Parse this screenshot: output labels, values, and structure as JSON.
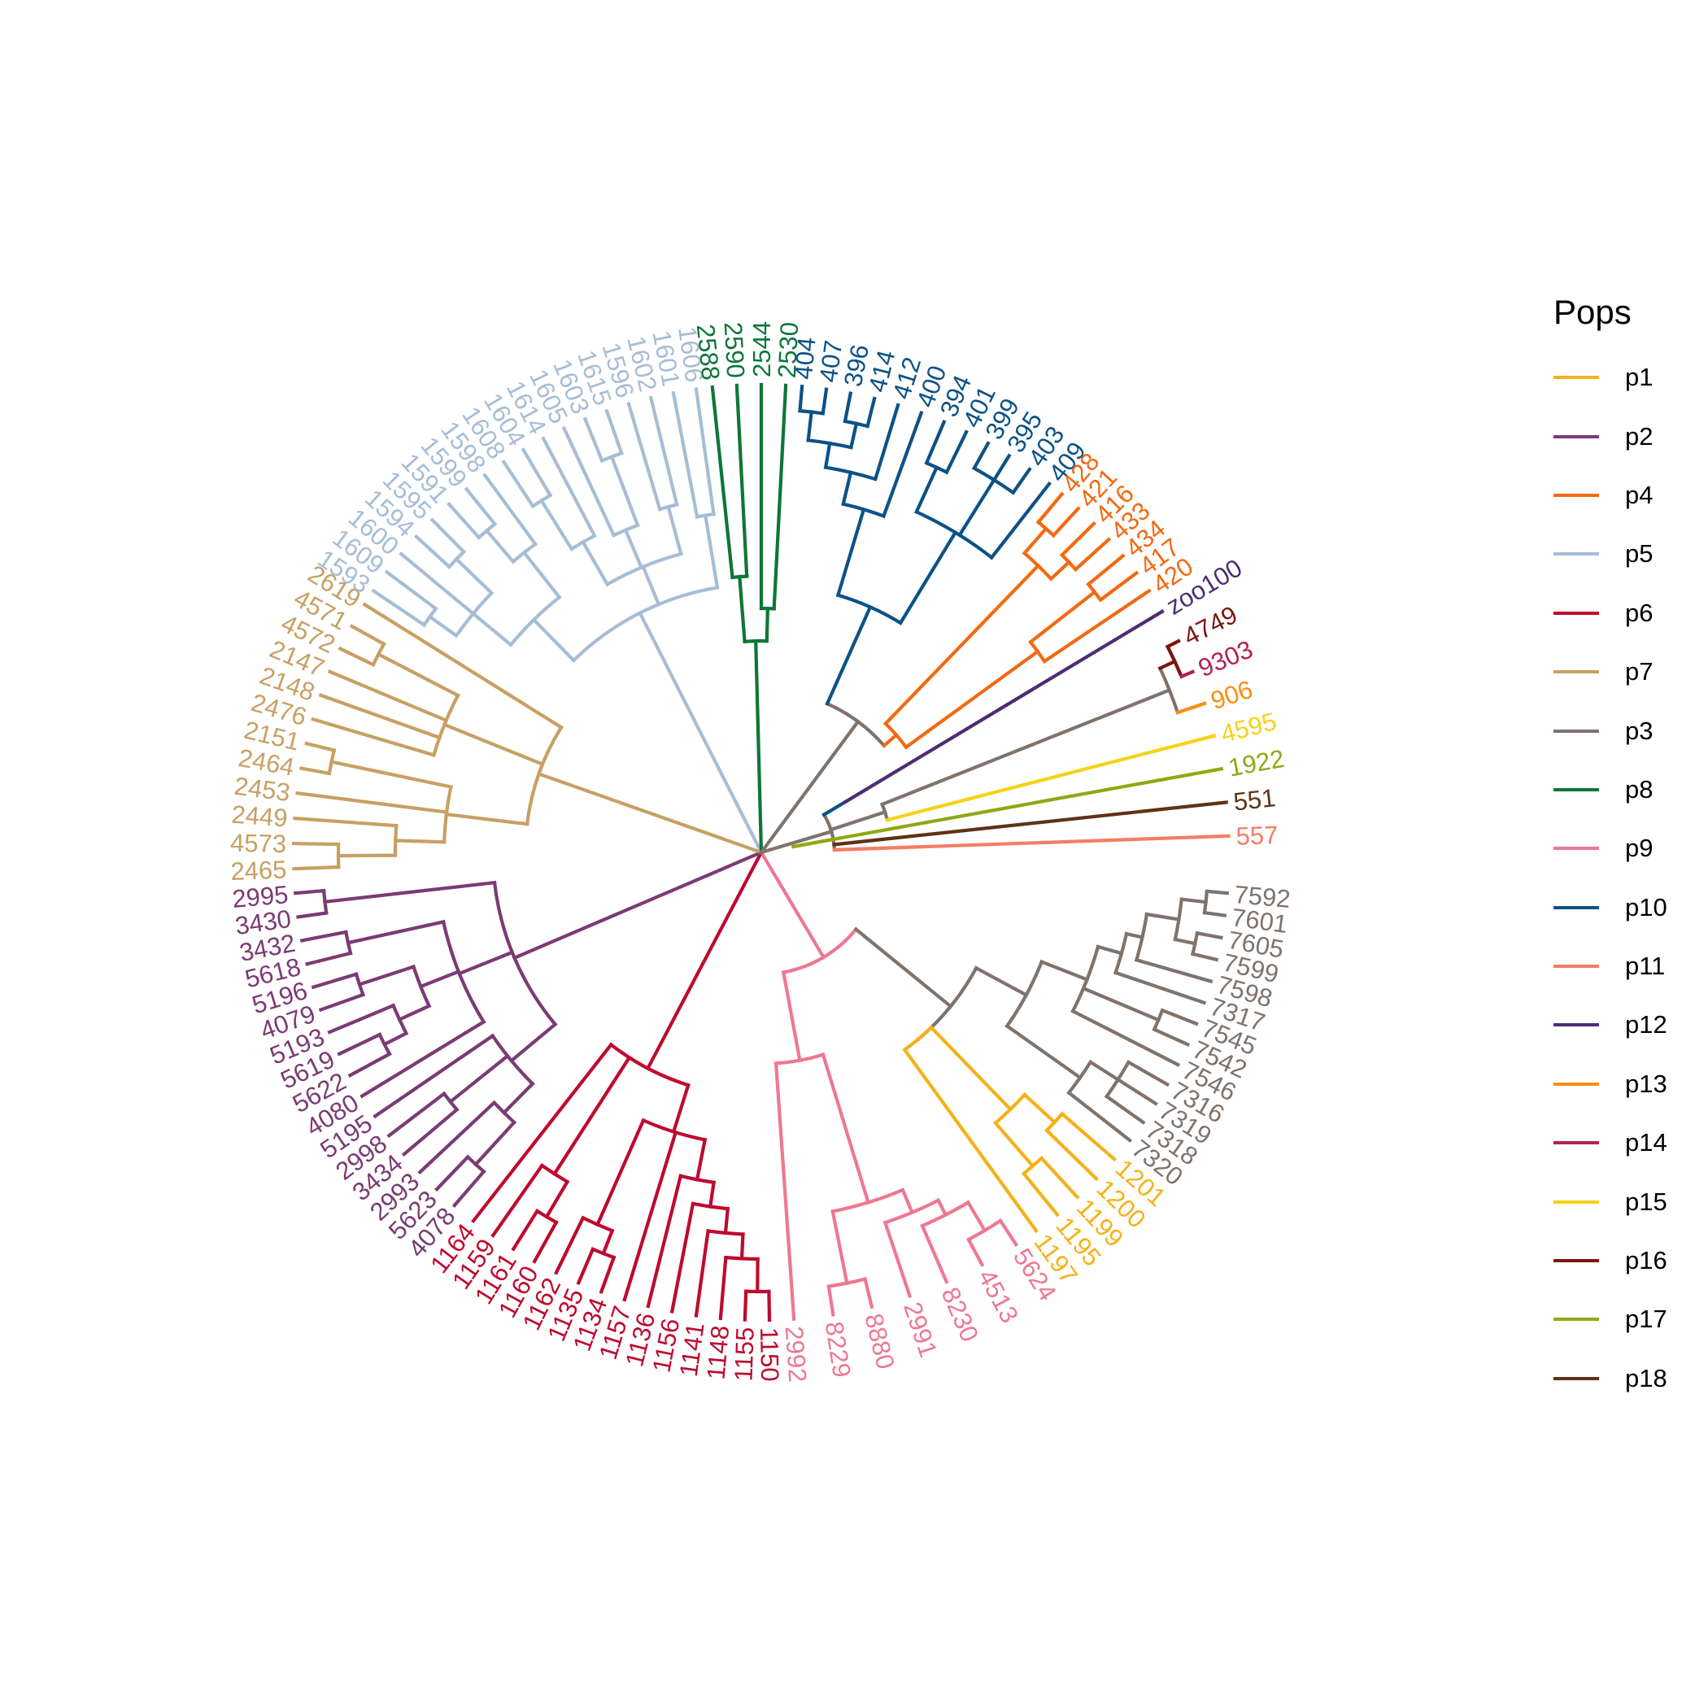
{
  "legend": {
    "title": "Pops",
    "items": [
      {
        "label": "p1",
        "color": "#F5B119"
      },
      {
        "label": "p2",
        "color": "#7B3B74"
      },
      {
        "label": "p4",
        "color": "#F26A11"
      },
      {
        "label": "p5",
        "color": "#A7BDD6"
      },
      {
        "label": "p6",
        "color": "#BE0A2F"
      },
      {
        "label": "p7",
        "color": "#C8A064"
      },
      {
        "label": "p3",
        "color": "#7F736C"
      },
      {
        "label": "p8",
        "color": "#0D7639"
      },
      {
        "label": "p9",
        "color": "#EE7891"
      },
      {
        "label": "p10",
        "color": "#0C5287"
      },
      {
        "label": "p11",
        "color": "#F47E63"
      },
      {
        "label": "p12",
        "color": "#4B2E74"
      },
      {
        "label": "p13",
        "color": "#FA8D0F"
      },
      {
        "label": "p14",
        "color": "#B0234F"
      },
      {
        "label": "p15",
        "color": "#F6D21A"
      },
      {
        "label": "p16",
        "color": "#7A1610"
      },
      {
        "label": "p17",
        "color": "#8FA914"
      },
      {
        "label": "p18",
        "color": "#5F3215"
      }
    ]
  },
  "tree": {
    "center": "p3",
    "labels_p10": [
      "404",
      "407",
      "396",
      "414",
      "412",
      "400",
      "394",
      "401",
      "399",
      "395",
      "403",
      "409"
    ],
    "labels_p4": [
      "428",
      "421",
      "416",
      "433",
      "434",
      "417",
      "420"
    ],
    "labels_misc": [
      {
        "text": "zoo100",
        "color": "#4B2E74"
      },
      {
        "text": "4749",
        "color": "#7A1610"
      },
      {
        "text": "9303",
        "color": "#B0234F"
      },
      {
        "text": "906",
        "color": "#FA8D0F"
      },
      {
        "text": "4595",
        "color": "#F6D21A"
      },
      {
        "text": "1922",
        "color": "#8FA914"
      },
      {
        "text": "551",
        "color": "#5F3215"
      },
      {
        "text": "557",
        "color": "#F47E63"
      }
    ],
    "labels_p3": [
      "7592",
      "7601",
      "7605",
      "7599",
      "7598",
      "7317",
      "7545",
      "7542",
      "7546",
      "7316",
      "7319",
      "7318",
      "7320"
    ],
    "labels_p1": [
      "1201",
      "1200",
      "1199",
      "1195",
      "1197"
    ],
    "labels_p9": [
      "5624",
      "4513",
      "8230",
      "2991",
      "8880",
      "8229",
      "2992"
    ],
    "labels_p6": [
      "1150",
      "1155",
      "1148",
      "1141",
      "1156",
      "1136",
      "1157",
      "1134",
      "1135",
      "1162",
      "1160",
      "1161",
      "1159",
      "1164"
    ],
    "labels_p2": [
      "4078",
      "5623",
      "2993",
      "3434",
      "2998",
      "5195",
      "4080",
      "5622",
      "5619",
      "5193",
      "4079",
      "5196",
      "5618",
      "3432",
      "3430",
      "2995"
    ],
    "labels_p7": [
      "2465",
      "4573",
      "2449",
      "2453",
      "2464",
      "2151",
      "2476",
      "2148",
      "2147",
      "4572",
      "4571",
      "2619"
    ],
    "labels_p5": [
      "1593",
      "1609",
      "1600",
      "1594",
      "1595",
      "1591",
      "1599",
      "1598",
      "1608",
      "1604",
      "1614",
      "1605",
      "1603",
      "1615",
      "1596",
      "1602",
      "1601",
      "1606"
    ],
    "labels_p8": [
      "2588",
      "2590",
      "2544",
      "2530"
    ]
  }
}
